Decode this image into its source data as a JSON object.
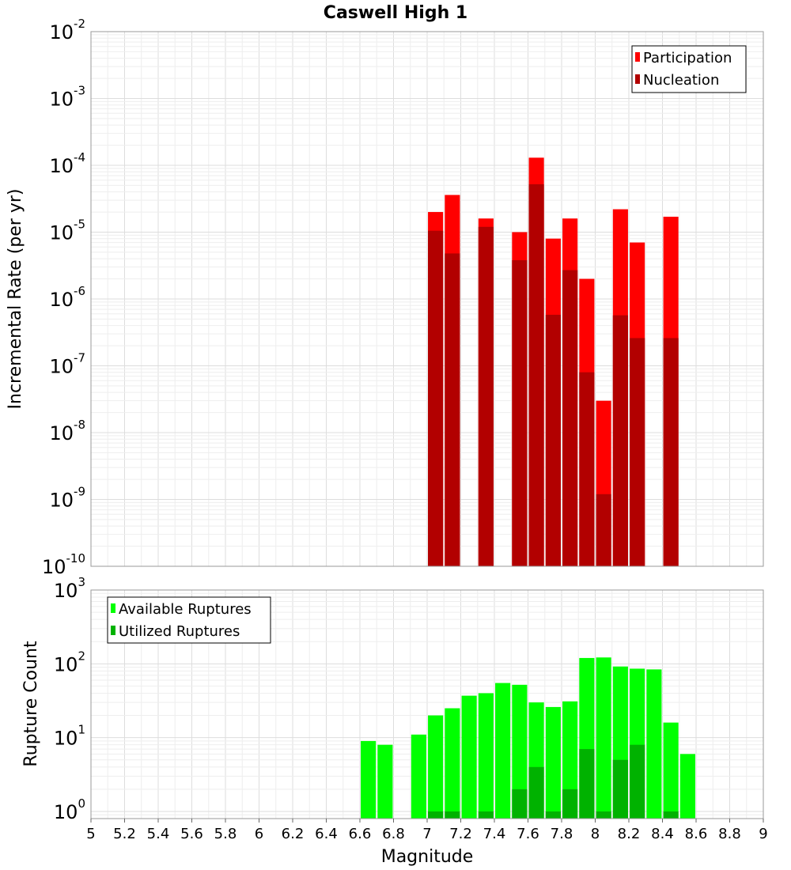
{
  "chart_data": [
    {
      "type": "bar",
      "title": "Caswell High 1",
      "xlabel": "",
      "ylabel": "Incremental Rate (per yr)",
      "yscale": "log",
      "ylim": [
        1e-10,
        0.01
      ],
      "xlim": [
        5,
        9
      ],
      "grid": true,
      "legend_position": "top-right",
      "bar_width": 0.09,
      "y_tick_exponents": [
        -10,
        -9,
        -8,
        -7,
        -6,
        -5,
        -4,
        -3,
        -2
      ],
      "series": [
        {
          "name": "Participation",
          "color": "#ff0000",
          "x": [
            7.05,
            7.15,
            7.35,
            7.55,
            7.65,
            7.75,
            7.85,
            7.95,
            8.05,
            8.15,
            8.25,
            8.45
          ],
          "values": [
            2e-05,
            3.6e-05,
            1.6e-05,
            1e-05,
            0.00013,
            8e-06,
            1.6e-05,
            2e-06,
            3e-08,
            2.2e-05,
            7e-06,
            1.7e-05
          ]
        },
        {
          "name": "Nucleation",
          "color": "#b20000",
          "x": [
            7.05,
            7.15,
            7.35,
            7.55,
            7.65,
            7.75,
            7.85,
            7.95,
            8.05,
            8.15,
            8.25,
            8.45
          ],
          "values": [
            1.05e-05,
            4.8e-06,
            1.2e-05,
            3.8e-06,
            5.2e-05,
            5.8e-07,
            2.7e-06,
            8e-08,
            1.2e-09,
            5.7e-07,
            2.6e-07,
            2.6e-07
          ]
        }
      ]
    },
    {
      "type": "bar",
      "title": "",
      "xlabel": "Magnitude",
      "ylabel": "Rupture Count",
      "yscale": "log",
      "ylim": [
        0.8,
        1000
      ],
      "xlim": [
        5,
        9
      ],
      "grid": true,
      "legend_position": "top-left",
      "bar_width": 0.09,
      "x_ticks": [
        "5",
        "5.2",
        "5.4",
        "5.6",
        "5.8",
        "6",
        "6.2",
        "6.4",
        "6.6",
        "6.8",
        "7",
        "7.2",
        "7.4",
        "7.6",
        "7.8",
        "8",
        "8.2",
        "8.4",
        "8.6",
        "8.8",
        "9"
      ],
      "y_tick_exponents": [
        0,
        1,
        2,
        3
      ],
      "series": [
        {
          "name": "Available Ruptures",
          "color": "#00ff00",
          "x": [
            6.65,
            6.75,
            6.95,
            7.05,
            7.15,
            7.25,
            7.35,
            7.45,
            7.55,
            7.65,
            7.75,
            7.85,
            7.95,
            8.05,
            8.15,
            8.25,
            8.35,
            8.45,
            8.55
          ],
          "values": [
            9,
            8,
            11,
            20,
            25,
            37,
            40,
            55,
            52,
            30,
            26,
            31,
            120,
            122,
            92,
            86,
            84,
            16,
            6
          ]
        },
        {
          "name": "Utilized Ruptures",
          "color": "#00b200",
          "x": [
            7.05,
            7.15,
            7.35,
            7.55,
            7.65,
            7.75,
            7.85,
            7.95,
            8.05,
            8.15,
            8.25,
            8.45
          ],
          "values": [
            1,
            1,
            1,
            2,
            4,
            1,
            2,
            7,
            1,
            5,
            8,
            1
          ]
        }
      ]
    }
  ]
}
